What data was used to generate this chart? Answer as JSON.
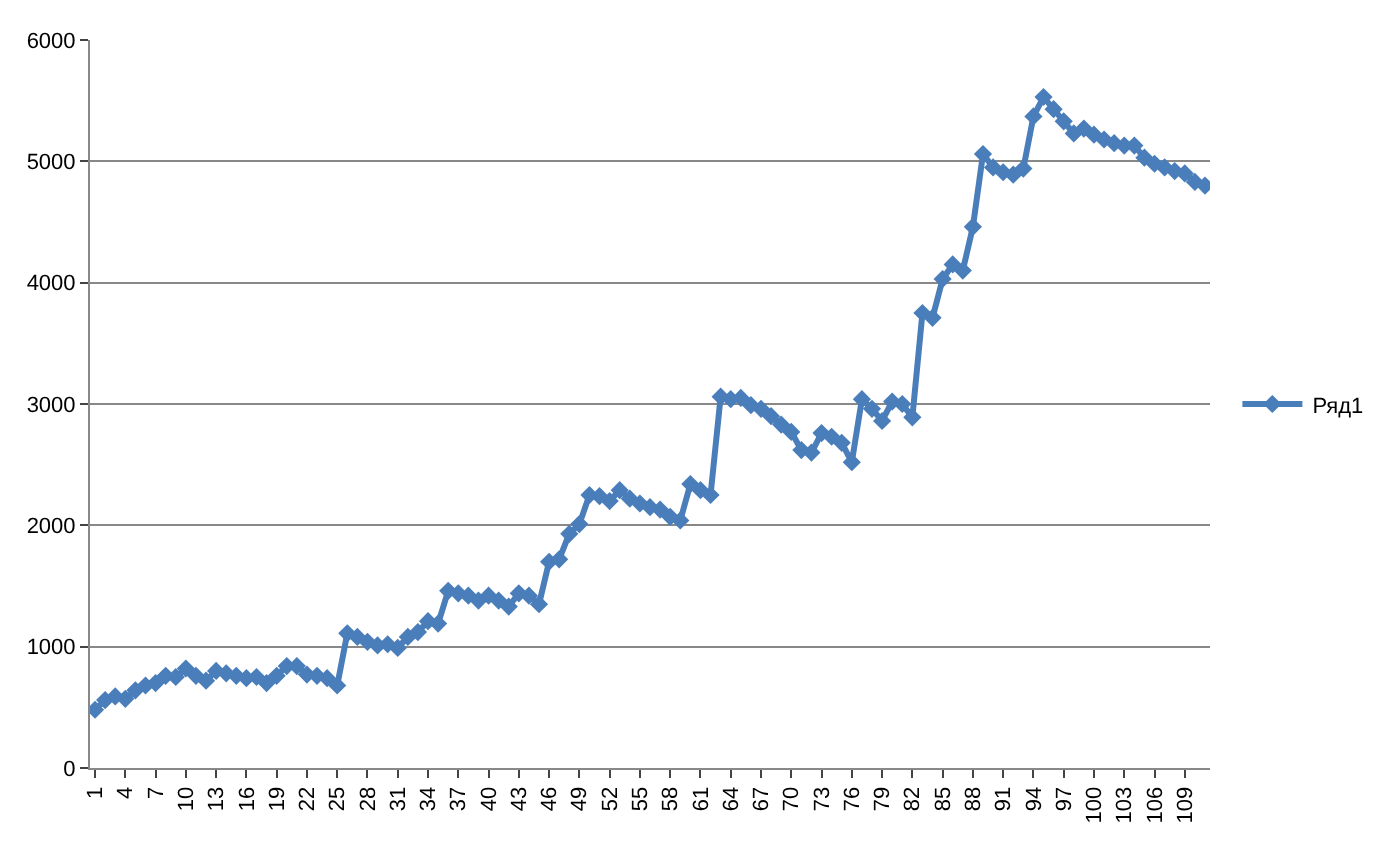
{
  "chart_data": {
    "type": "line",
    "categories": [
      "1",
      null,
      null,
      "4",
      null,
      null,
      "7",
      null,
      null,
      "10",
      null,
      null,
      "13",
      null,
      null,
      "16",
      null,
      null,
      "19",
      null,
      null,
      "22",
      null,
      null,
      "25",
      null,
      null,
      "28",
      null,
      null,
      "31",
      null,
      null,
      "34",
      null,
      null,
      "37",
      null,
      null,
      "40",
      null,
      null,
      "43",
      null,
      null,
      "46",
      null,
      null,
      "49",
      null,
      null,
      "52",
      null,
      null,
      "55",
      null,
      null,
      "58",
      null,
      null,
      "61",
      null,
      null,
      "64",
      null,
      null,
      "67",
      null,
      null,
      "70",
      null,
      null,
      "73",
      null,
      null,
      "76",
      null,
      null,
      "79",
      null,
      null,
      "82",
      null,
      null,
      "85",
      null,
      null,
      "88",
      null,
      null,
      "91",
      null,
      null,
      "94",
      null,
      null,
      "97",
      null,
      null,
      "100",
      null,
      null,
      "103",
      null,
      null,
      "106",
      null,
      null,
      "109",
      null,
      null
    ],
    "series": [
      {
        "name": "Ряд1",
        "color": "#4a7ebb",
        "values": [
          480,
          560,
          590,
          570,
          640,
          680,
          700,
          760,
          750,
          820,
          760,
          720,
          800,
          780,
          760,
          740,
          750,
          700,
          760,
          840,
          840,
          770,
          760,
          740,
          680,
          1110,
          1080,
          1040,
          1010,
          1020,
          990,
          1080,
          1120,
          1210,
          1190,
          1460,
          1440,
          1420,
          1380,
          1420,
          1380,
          1330,
          1440,
          1420,
          1350,
          1700,
          1720,
          1930,
          2010,
          2250,
          2240,
          2200,
          2290,
          2220,
          2180,
          2150,
          2130,
          2070,
          2040,
          2340,
          2290,
          2250,
          3060,
          3040,
          3050,
          2990,
          2960,
          2900,
          2830,
          2770,
          2620,
          2600,
          2760,
          2730,
          2680,
          2520,
          3040,
          2960,
          2860,
          3020,
          3000,
          2890,
          3750,
          3710,
          4030,
          4150,
          4100,
          4460,
          5060,
          4950,
          4910,
          4890,
          4940,
          5370,
          5530,
          5430,
          5330,
          5230,
          5270,
          5220,
          5180,
          5150,
          5130,
          5130,
          5030,
          4980,
          4950,
          4920,
          4900,
          4830,
          4800
        ]
      }
    ],
    "ylim": [
      0,
      6000
    ],
    "yticks": [
      0,
      1000,
      2000,
      3000,
      4000,
      5000,
      6000
    ],
    "grid": "y",
    "legend": "right",
    "marker": "diamond",
    "line_style": "solid"
  }
}
